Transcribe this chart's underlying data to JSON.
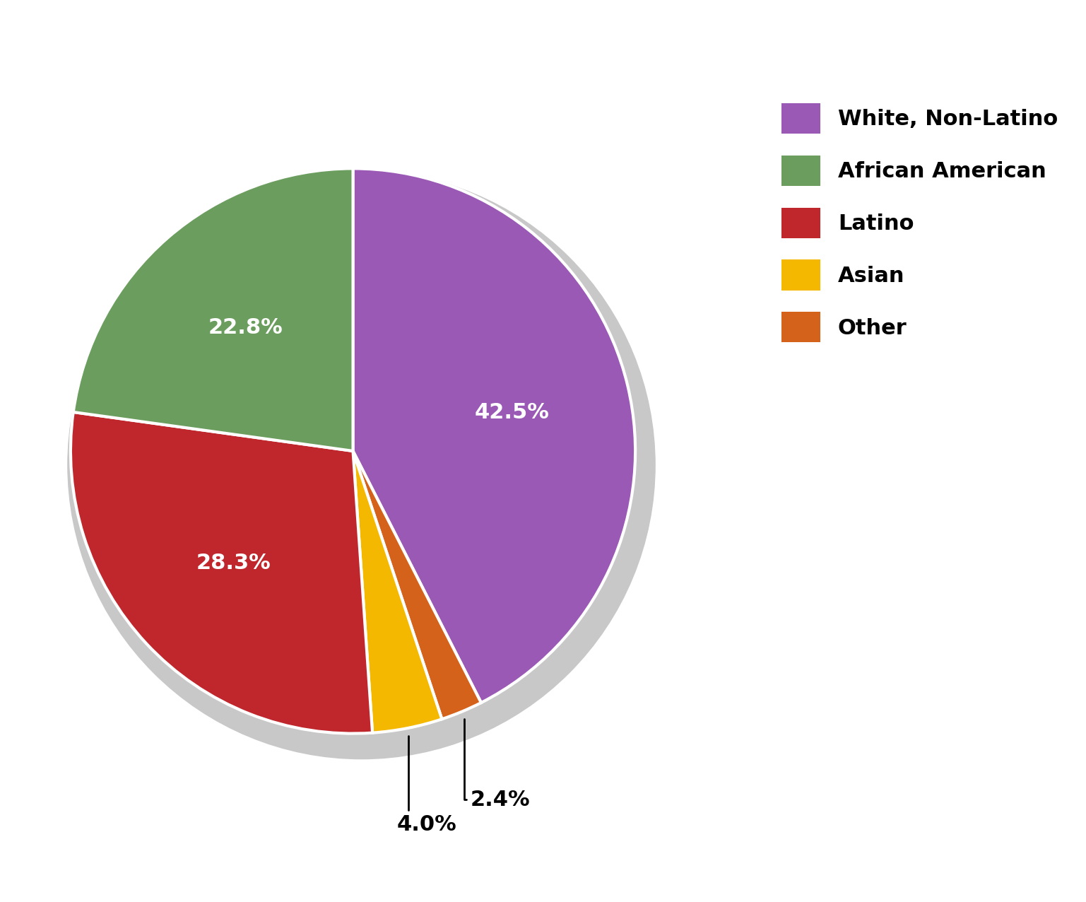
{
  "plot_values": [
    42.5,
    2.4,
    4.0,
    28.3,
    22.8
  ],
  "plot_colors": [
    "#9b59b6",
    "#d4621a",
    "#f5b800",
    "#c0272d",
    "#6b9e5e"
  ],
  "plot_labels": [
    "White, Non-Latino",
    "Other",
    "Asian",
    "Latino",
    "African American"
  ],
  "plot_pct_labels": [
    "42.5%",
    "2.4%",
    "4.0%",
    "28.3%",
    "22.8%"
  ],
  "plot_pct_colors": [
    "white",
    "black",
    "black",
    "white",
    "white"
  ],
  "legend_labels": [
    "White, Non-Latino",
    "African American",
    "Latino",
    "Asian",
    "Other"
  ],
  "legend_colors": [
    "#9b59b6",
    "#6b9e5e",
    "#c0272d",
    "#f5b800",
    "#d4621a"
  ],
  "background_color": "#ffffff",
  "startangle": 90,
  "label_fontsize": 22,
  "legend_fontsize": 22
}
